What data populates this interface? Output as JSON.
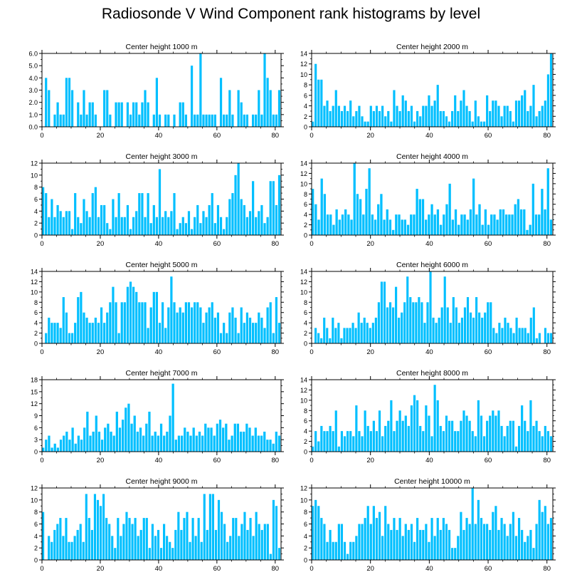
{
  "title": "Radiosonde V Wind Component rank histograms by level",
  "bar_color": "#00bfff",
  "chart_data": [
    {
      "type": "bar",
      "title": "Center height 1000 m",
      "ylim": [
        0,
        6
      ],
      "yticks": [
        0,
        1,
        2,
        3,
        4,
        5,
        6
      ],
      "ytick_labels": [
        "0.0",
        "1.0",
        "2.0",
        "3.0",
        "4.0",
        "5.0",
        "6.0"
      ],
      "xlim": [
        0,
        82
      ],
      "xticks": [
        0,
        20,
        40,
        60,
        80
      ],
      "xtick_labels": [
        "0",
        "20",
        "40",
        "60",
        "80"
      ],
      "values": [
        0,
        4,
        3,
        0,
        1,
        2,
        1,
        1,
        4,
        4,
        3,
        0,
        2,
        1,
        3,
        1,
        2,
        2,
        1,
        0,
        0,
        3,
        3,
        1,
        0,
        2,
        2,
        2,
        0,
        2,
        1,
        2,
        2,
        1,
        2,
        3,
        2,
        0,
        1,
        4,
        1,
        0,
        1,
        1,
        0,
        1,
        0,
        2,
        2,
        1,
        0,
        5,
        1,
        1,
        6,
        1,
        1,
        1,
        1,
        1,
        0,
        4,
        1,
        1,
        3,
        1,
        0,
        3,
        2,
        1,
        1,
        0,
        1,
        1,
        3,
        1,
        6,
        4,
        3,
        1,
        1,
        3
      ]
    },
    {
      "type": "bar",
      "title": "Center height 2000 m",
      "ylim": [
        0,
        14
      ],
      "yticks": [
        0,
        2,
        4,
        6,
        8,
        10,
        12,
        14
      ],
      "ytick_labels": [
        "0",
        "2",
        "4",
        "6",
        "8",
        "10",
        "12",
        "14"
      ],
      "xlim": [
        0,
        82
      ],
      "xticks": [
        0,
        20,
        40,
        60,
        80
      ],
      "xtick_labels": [
        "0",
        "20",
        "40",
        "60",
        "80"
      ],
      "values": [
        1,
        12,
        9,
        9,
        4,
        5,
        3,
        4,
        7,
        4,
        3,
        4,
        3,
        5,
        2,
        3,
        4,
        2,
        1,
        1,
        4,
        3,
        4,
        3,
        4,
        2,
        3,
        1,
        7,
        4,
        3,
        6,
        5,
        3,
        4,
        1,
        3,
        2,
        4,
        4,
        6,
        4,
        5,
        8,
        3,
        3,
        2,
        1,
        3,
        6,
        3,
        5,
        7,
        4,
        3,
        1,
        5,
        2,
        1,
        1,
        6,
        3,
        5,
        5,
        4,
        2,
        4,
        4,
        3,
        1,
        5,
        5,
        6,
        7,
        3,
        4,
        8,
        2,
        3,
        4,
        5,
        10,
        14
      ]
    },
    {
      "type": "bar",
      "title": "Center height 3000 m",
      "ylim": [
        0,
        12
      ],
      "yticks": [
        0,
        2,
        4,
        6,
        8,
        10,
        12
      ],
      "ytick_labels": [
        "0",
        "2",
        "4",
        "6",
        "8",
        "10",
        "12"
      ],
      "xlim": [
        0,
        82
      ],
      "xticks": [
        0,
        20,
        40,
        60,
        80
      ],
      "xtick_labels": [
        "0",
        "20",
        "40",
        "60",
        "80"
      ],
      "values": [
        8,
        7,
        3,
        6,
        3,
        5,
        4,
        3,
        4,
        4,
        1,
        7,
        3,
        2,
        6,
        4,
        3,
        7,
        8,
        3,
        5,
        5,
        2,
        1,
        6,
        3,
        7,
        3,
        3,
        5,
        1,
        3,
        4,
        7,
        7,
        3,
        7,
        2,
        5,
        3,
        11,
        3,
        4,
        3,
        4,
        7,
        1,
        2,
        3,
        2,
        4,
        1,
        3,
        5,
        2,
        4,
        3,
        5,
        7,
        2,
        5,
        3,
        1,
        3,
        6,
        7,
        10,
        12,
        6,
        5,
        3,
        4,
        9,
        3,
        4,
        5,
        2,
        3,
        9,
        9,
        5,
        10
      ]
    },
    {
      "type": "bar",
      "title": "Center height 4000 m",
      "ylim": [
        0,
        14
      ],
      "yticks": [
        0,
        2,
        4,
        6,
        8,
        10,
        12,
        14
      ],
      "ytick_labels": [
        "0",
        "2",
        "4",
        "6",
        "8",
        "10",
        "12",
        "14"
      ],
      "xlim": [
        0,
        82
      ],
      "xticks": [
        0,
        20,
        40,
        60,
        80
      ],
      "xtick_labels": [
        "0",
        "20",
        "40",
        "60",
        "80"
      ],
      "values": [
        9,
        6,
        3,
        11,
        8,
        4,
        4,
        2,
        5,
        3,
        4,
        5,
        4,
        3,
        15,
        8,
        7,
        4,
        9,
        13,
        4,
        3,
        6,
        8,
        3,
        5,
        3,
        1,
        4,
        4,
        3,
        3,
        2,
        4,
        4,
        9,
        7,
        7,
        3,
        4,
        6,
        4,
        5,
        2,
        4,
        6,
        10,
        3,
        5,
        2,
        4,
        4,
        3,
        5,
        11,
        4,
        6,
        2,
        5,
        2,
        4,
        4,
        3,
        5,
        5,
        4,
        4,
        4,
        6,
        7,
        5,
        5,
        1,
        2,
        10,
        4,
        4,
        9,
        5,
        13,
        3
      ]
    },
    {
      "type": "bar",
      "title": "Center height 5000 m",
      "ylim": [
        0,
        14
      ],
      "yticks": [
        0,
        2,
        4,
        6,
        8,
        10,
        12,
        14
      ],
      "ytick_labels": [
        "0",
        "2",
        "4",
        "6",
        "8",
        "10",
        "12",
        "14"
      ],
      "xlim": [
        0,
        82
      ],
      "xticks": [
        0,
        20,
        40,
        60,
        80
      ],
      "xtick_labels": [
        "0",
        "20",
        "40",
        "60",
        "80"
      ],
      "values": [
        0,
        2,
        5,
        4,
        4,
        4,
        3,
        9,
        6,
        2,
        2,
        4,
        9,
        10,
        6,
        5,
        4,
        4,
        5,
        4,
        7,
        4,
        6,
        8,
        11,
        8,
        2,
        8,
        8,
        11,
        12,
        11,
        10,
        8,
        8,
        8,
        3,
        7,
        10,
        10,
        4,
        8,
        3,
        7,
        13,
        8,
        6,
        7,
        6,
        8,
        8,
        7,
        8,
        8,
        7,
        4,
        6,
        7,
        8,
        5,
        6,
        2,
        4,
        2,
        6,
        7,
        5,
        2,
        7,
        4,
        6,
        5,
        4,
        4,
        6,
        5,
        3,
        7,
        8,
        2,
        9,
        4
      ]
    },
    {
      "type": "bar",
      "title": "Center height 6000 m",
      "ylim": [
        0,
        14
      ],
      "yticks": [
        0,
        2,
        4,
        6,
        8,
        10,
        12,
        14
      ],
      "ytick_labels": [
        "0",
        "2",
        "4",
        "6",
        "8",
        "10",
        "12",
        "14"
      ],
      "xlim": [
        0,
        82
      ],
      "xticks": [
        0,
        20,
        40,
        60,
        80
      ],
      "xtick_labels": [
        "0",
        "20",
        "40",
        "60",
        "80"
      ],
      "values": [
        0,
        3,
        2,
        1,
        5,
        3,
        1,
        5,
        3,
        4,
        1,
        3,
        3,
        3,
        4,
        3,
        6,
        4,
        5,
        4,
        3,
        4,
        5,
        8,
        12,
        12,
        7,
        8,
        7,
        11,
        5,
        6,
        8,
        13,
        9,
        8,
        8,
        9,
        8,
        4,
        8,
        14,
        5,
        4,
        5,
        7,
        13,
        7,
        4,
        9,
        7,
        4,
        5,
        7,
        9,
        6,
        5,
        9,
        6,
        5,
        6,
        8,
        8,
        3,
        2,
        4,
        3,
        5,
        4,
        3,
        2,
        5,
        3,
        3,
        3,
        2,
        5,
        7,
        1,
        2,
        0,
        3,
        2,
        2
      ]
    },
    {
      "type": "bar",
      "title": "Center height 7000 m",
      "ylim": [
        0,
        18
      ],
      "yticks": [
        0,
        3,
        6,
        9,
        12,
        15,
        18
      ],
      "ytick_labels": [
        "0",
        "3",
        "6",
        "9",
        "12",
        "15",
        "18"
      ],
      "xlim": [
        0,
        82
      ],
      "xticks": [
        0,
        20,
        40,
        60,
        80
      ],
      "xtick_labels": [
        "0",
        "20",
        "40",
        "60",
        "80"
      ],
      "values": [
        1,
        3,
        4,
        1,
        2,
        1,
        3,
        4,
        5,
        3,
        6,
        2,
        4,
        3,
        6,
        10,
        4,
        5,
        9,
        5,
        3,
        6,
        7,
        5,
        4,
        10,
        6,
        8,
        11,
        12,
        7,
        9,
        5,
        6,
        4,
        7,
        10,
        4,
        5,
        4,
        7,
        4,
        5,
        9,
        17,
        3,
        4,
        4,
        6,
        5,
        4,
        6,
        4,
        5,
        4,
        7,
        6,
        6,
        4,
        7,
        8,
        6,
        7,
        3,
        4,
        7,
        7,
        5,
        5,
        7,
        6,
        4,
        6,
        4,
        4,
        5,
        3,
        3,
        2,
        5,
        4
      ]
    },
    {
      "type": "bar",
      "title": "Center height 8000 m",
      "ylim": [
        0,
        14
      ],
      "yticks": [
        0,
        2,
        4,
        6,
        8,
        10,
        12,
        14
      ],
      "ytick_labels": [
        "0",
        "2",
        "4",
        "6",
        "8",
        "10",
        "12",
        "14"
      ],
      "xlim": [
        0,
        82
      ],
      "xticks": [
        0,
        20,
        40,
        60,
        80
      ],
      "xtick_labels": [
        "0",
        "20",
        "40",
        "60",
        "80"
      ],
      "values": [
        1,
        4,
        2,
        5,
        4,
        4,
        5,
        4,
        8,
        1,
        4,
        3,
        4,
        4,
        3,
        9,
        4,
        3,
        8,
        5,
        4,
        6,
        4,
        8,
        3,
        5,
        6,
        10,
        4,
        6,
        8,
        6,
        7,
        5,
        9,
        11,
        10,
        5,
        4,
        9,
        7,
        3,
        13,
        10,
        5,
        4,
        7,
        6,
        6,
        4,
        4,
        6,
        8,
        7,
        6,
        4,
        3,
        10,
        7,
        3,
        6,
        7,
        8,
        7,
        8,
        5,
        3,
        5,
        6,
        6,
        1,
        5,
        9,
        6,
        4,
        10,
        5,
        6,
        4,
        3,
        5,
        4,
        3
      ]
    },
    {
      "type": "bar",
      "title": "Center height 9000 m",
      "ylim": [
        0,
        12
      ],
      "yticks": [
        0,
        2,
        4,
        6,
        8,
        10,
        12
      ],
      "ytick_labels": [
        "0",
        "2",
        "4",
        "6",
        "8",
        "10",
        "12"
      ],
      "xlim": [
        0,
        82
      ],
      "xticks": [
        0,
        20,
        40,
        60,
        80
      ],
      "xtick_labels": [
        "0",
        "20",
        "40",
        "60",
        "80"
      ],
      "values": [
        8,
        0,
        4,
        3,
        5,
        6,
        7,
        4,
        7,
        3,
        3,
        4,
        5,
        6,
        3,
        11,
        7,
        5,
        11,
        10,
        9,
        11,
        7,
        6,
        4,
        2,
        7,
        4,
        6,
        8,
        7,
        6,
        7,
        4,
        5,
        7,
        7,
        2,
        6,
        4,
        5,
        2,
        6,
        4,
        3,
        2,
        5,
        8,
        5,
        7,
        8,
        3,
        7,
        4,
        7,
        3,
        11,
        5,
        11,
        11,
        5,
        10,
        8,
        6,
        3,
        4,
        7,
        7,
        4,
        6,
        8,
        5,
        7,
        4,
        8,
        6,
        5,
        6,
        6,
        1,
        10,
        9,
        2
      ]
    },
    {
      "type": "bar",
      "title": "Center height 10000 m",
      "ylim": [
        0,
        12
      ],
      "yticks": [
        0,
        2,
        4,
        6,
        8,
        10,
        12
      ],
      "ytick_labels": [
        "0",
        "2",
        "4",
        "6",
        "8",
        "10",
        "12"
      ],
      "xlim": [
        0,
        82
      ],
      "xticks": [
        0,
        20,
        40,
        60,
        80
      ],
      "xtick_labels": [
        "0",
        "20",
        "40",
        "60",
        "80"
      ],
      "values": [
        9,
        10,
        9,
        7,
        6,
        3,
        5,
        3,
        3,
        6,
        6,
        3,
        1,
        3,
        3,
        4,
        6,
        6,
        7,
        9,
        6,
        9,
        7,
        8,
        4,
        9,
        6,
        5,
        7,
        5,
        7,
        4,
        6,
        5,
        6,
        3,
        7,
        5,
        5,
        6,
        3,
        7,
        4,
        7,
        5,
        7,
        6,
        5,
        2,
        2,
        4,
        8,
        5,
        7,
        6,
        12,
        6,
        10,
        7,
        6,
        6,
        5,
        8,
        9,
        5,
        7,
        6,
        4,
        6,
        8,
        4,
        7,
        5,
        3,
        4,
        5,
        2,
        6,
        10,
        8,
        9,
        6,
        7
      ]
    }
  ]
}
